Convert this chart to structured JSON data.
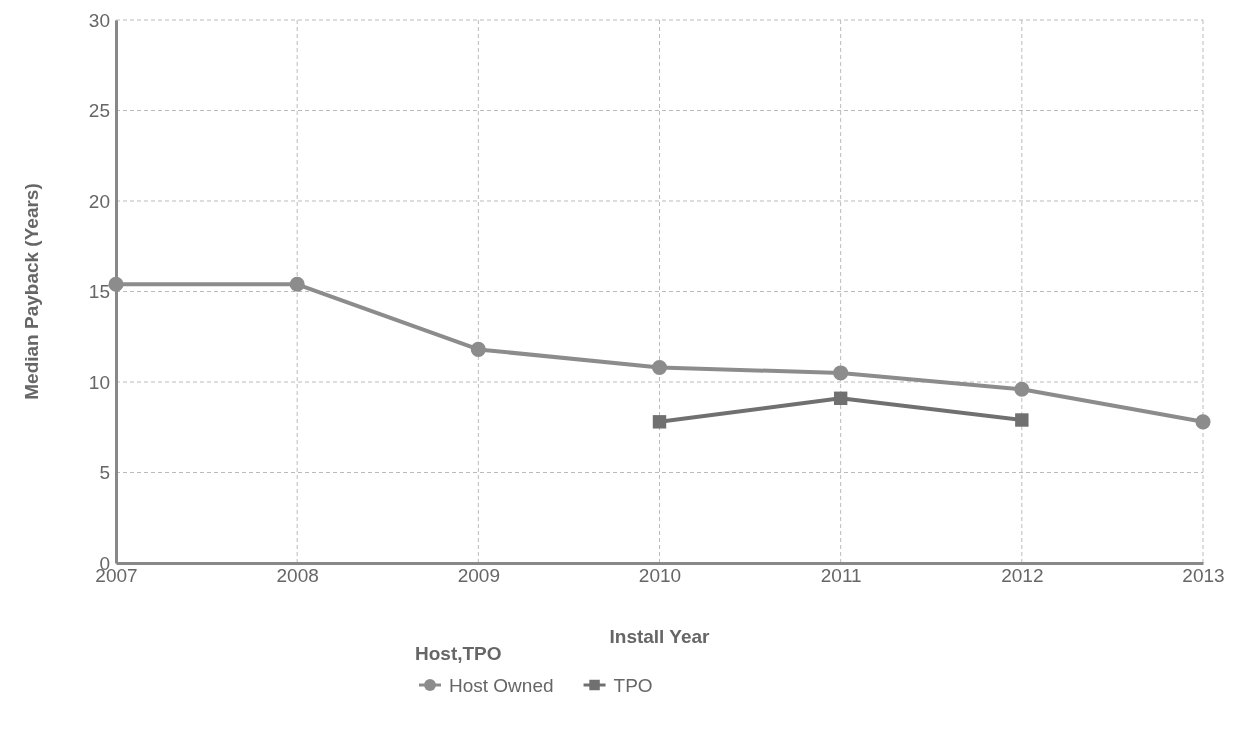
{
  "chart_data": {
    "type": "line",
    "xlabel": "Install Year",
    "ylabel": "Median Payback (Years)",
    "legend_title": "Host,TPO",
    "x": [
      2007,
      2008,
      2009,
      2010,
      2011,
      2012,
      2013
    ],
    "xlim": [
      2007,
      2013
    ],
    "xticks": [
      2007,
      2008,
      2009,
      2010,
      2011,
      2012,
      2013
    ],
    "ylim": [
      0,
      30
    ],
    "yticks": [
      0,
      5,
      10,
      15,
      20,
      25,
      30
    ],
    "grid": true,
    "legend": "bottom",
    "line_style": "solid",
    "series": [
      {
        "name": "Host Owned",
        "color": "#8c8c8c",
        "marker": "circle",
        "values": [
          15.4,
          15.4,
          11.8,
          10.8,
          10.5,
          9.6,
          7.8
        ]
      },
      {
        "name": "TPO",
        "color": "#707070",
        "marker": "square",
        "values": [
          null,
          null,
          null,
          7.8,
          9.1,
          7.9,
          null
        ]
      }
    ]
  }
}
